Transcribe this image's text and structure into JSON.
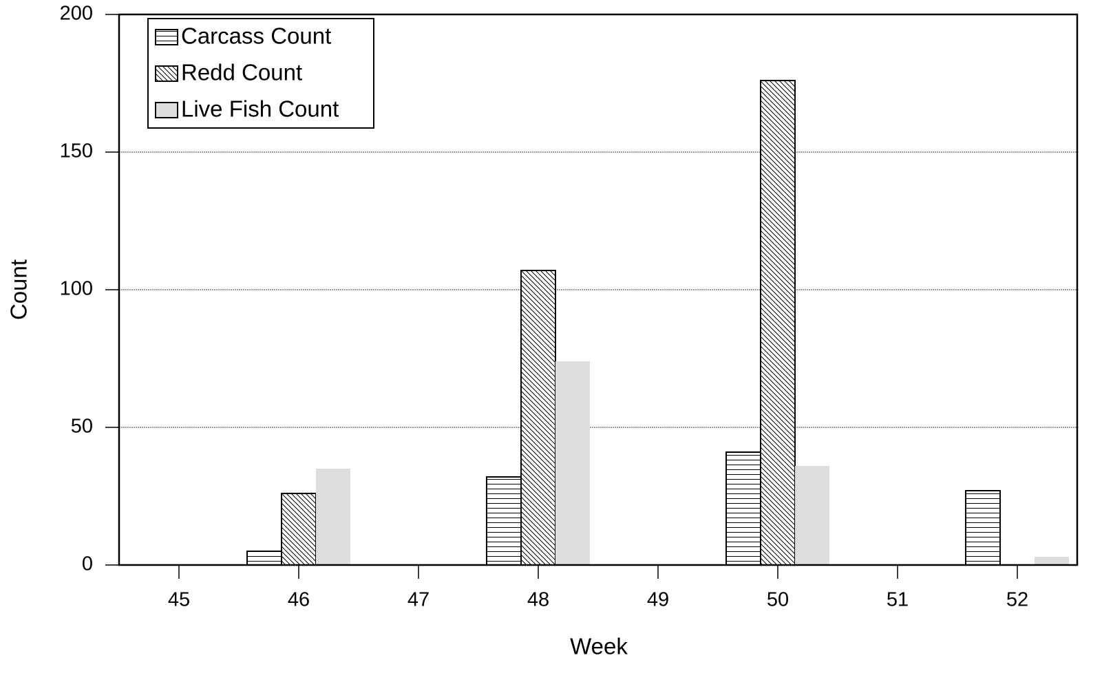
{
  "chart_data": {
    "type": "bar",
    "x_label": "Week",
    "y_label": "Count",
    "categories": [
      "45",
      "46",
      "47",
      "48",
      "49",
      "50",
      "51",
      "52"
    ],
    "series": [
      {
        "name": "Carcass Count",
        "color": "#000000",
        "pattern": "horizontal",
        "values": [
          0,
          5,
          0,
          32,
          0,
          41,
          0,
          27
        ]
      },
      {
        "name": "Redd Count",
        "color": "#000000",
        "pattern": "diagonal",
        "values": [
          0,
          26,
          0,
          107,
          0,
          176,
          0,
          0
        ]
      },
      {
        "name": "Live Fish Count",
        "color": "#dddddd",
        "pattern": "solid",
        "values": [
          0,
          35,
          0,
          74,
          0,
          36,
          0,
          3
        ]
      }
    ],
    "ylim": [
      0,
      200
    ],
    "yticks": [
      0,
      50,
      100,
      150,
      200
    ],
    "grid": true,
    "legend": "upper left"
  }
}
